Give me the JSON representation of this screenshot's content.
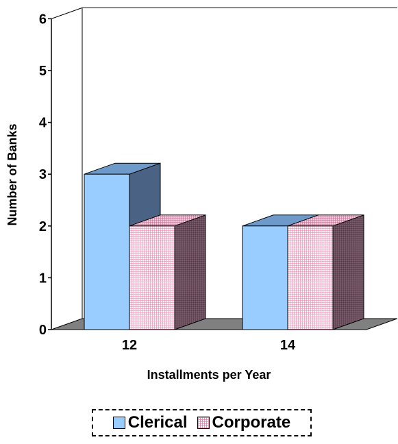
{
  "chart_data": {
    "type": "bar",
    "categories": [
      "12",
      "14"
    ],
    "series": [
      {
        "name": "Clerical",
        "values": [
          3,
          2
        ]
      },
      {
        "name": "Corporate",
        "values": [
          2,
          2
        ]
      }
    ],
    "xlabel": "Installments per Year",
    "ylabel": "Number of Banks",
    "ylim": [
      0,
      6
    ],
    "yticks": [
      "0",
      "1",
      "2",
      "3",
      "4",
      "5",
      "6"
    ],
    "grid": false,
    "legend_position": "bottom",
    "style": "3d-clustered-column"
  },
  "colors": {
    "clerical_front": "#99ccff",
    "clerical_top": "#6d9ac8",
    "clerical_side": "#4a6384",
    "corporate_front": "#fff0f6",
    "corporate_pattern": "#e878a0",
    "corporate_top": "#e9a5c3",
    "corporate_side": "#7a5a6a",
    "floor": "#808080"
  }
}
